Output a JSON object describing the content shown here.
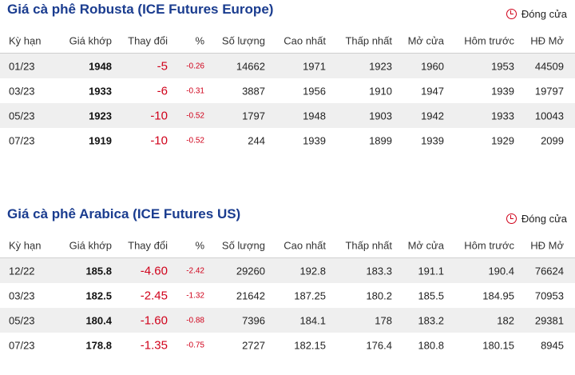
{
  "robusta": {
    "title": "Giá cà phê Robusta (ICE Futures Europe)",
    "status": "Đóng cửa",
    "headers": [
      "Kỳ hạn",
      "Giá khớp",
      "Thay đổi",
      "%",
      "Số lượng",
      "Cao nhất",
      "Thấp nhất",
      "Mở cửa",
      "Hôm trước",
      "HĐ Mở"
    ],
    "rows": [
      [
        "01/23",
        "1948",
        "-5",
        "-0.26",
        "14662",
        "1971",
        "1923",
        "1960",
        "1953",
        "44509"
      ],
      [
        "03/23",
        "1933",
        "-6",
        "-0.31",
        "3887",
        "1956",
        "1910",
        "1947",
        "1939",
        "19797"
      ],
      [
        "05/23",
        "1923",
        "-10",
        "-0.52",
        "1797",
        "1948",
        "1903",
        "1942",
        "1933",
        "10043"
      ],
      [
        "07/23",
        "1919",
        "-10",
        "-0.52",
        "244",
        "1939",
        "1899",
        "1939",
        "1929",
        "2099"
      ]
    ]
  },
  "arabica": {
    "title": "Giá cà phê Arabica (ICE Futures US)",
    "status": "Đóng cửa",
    "headers": [
      "Kỳ hạn",
      "Giá khớp",
      "Thay đổi",
      "%",
      "Số lượng",
      "Cao nhất",
      "Thấp nhất",
      "Mở cửa",
      "Hôm trước",
      "HĐ Mở"
    ],
    "rows": [
      [
        "12/22",
        "185.8",
        "-4.60",
        "-2.42",
        "29260",
        "192.8",
        "183.3",
        "191.1",
        "190.4",
        "76624"
      ],
      [
        "03/23",
        "182.5",
        "-2.45",
        "-1.32",
        "21642",
        "187.25",
        "180.2",
        "185.5",
        "184.95",
        "70953"
      ],
      [
        "05/23",
        "180.4",
        "-1.60",
        "-0.88",
        "7396",
        "184.1",
        "178",
        "183.2",
        "182",
        "29381"
      ],
      [
        "07/23",
        "178.8",
        "-1.35",
        "-0.75",
        "2727",
        "182.15",
        "176.4",
        "180.8",
        "180.15",
        "8945"
      ]
    ]
  },
  "colors": {
    "title": "#1a3c8f",
    "negative": "#d0021b",
    "row_shade": "#efefef"
  },
  "icons": {
    "status": "clock-icon"
  }
}
